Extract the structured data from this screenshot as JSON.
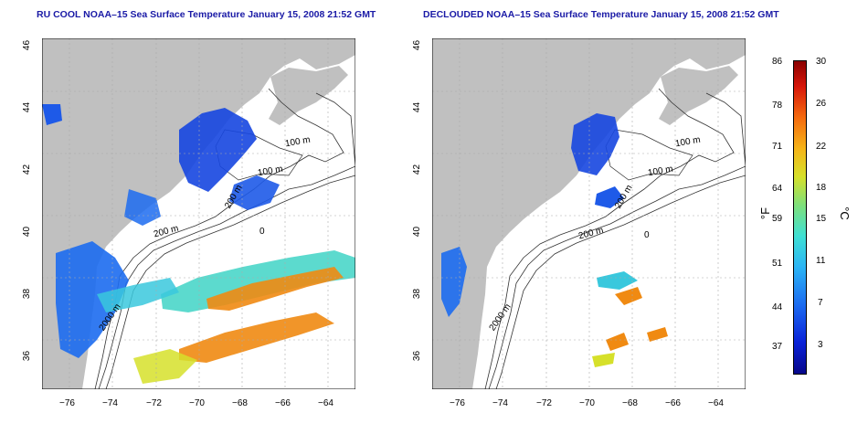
{
  "titles": {
    "left": "RU COOL NOAA–15 Sea Surface Temperature January 15, 2008 21:52 GMT",
    "right": "DECLOUDED NOAA–15 Sea Surface Temperature January 15, 2008 21:52 GMT"
  },
  "axes": {
    "x_ticks": [
      "−76",
      "−74",
      "−72",
      "−70",
      "−68",
      "−66",
      "−64"
    ],
    "y_ticks": [
      "36",
      "38",
      "40",
      "42",
      "44",
      "46"
    ]
  },
  "isobath_labels": {
    "left": [
      "100 m",
      "100 m",
      "200 m",
      "200 m",
      "2000 m",
      "0"
    ],
    "right": [
      "100 m",
      "100 m",
      "200 m",
      "200 m",
      "2000 m",
      "0"
    ]
  },
  "colorbar": {
    "fahrenheit_label": "°F",
    "celsius_label": "°C",
    "fahrenheit_ticks": [
      "86",
      "78",
      "71",
      "64",
      "59",
      "51",
      "44",
      "37"
    ],
    "celsius_ticks": [
      "30",
      "26",
      "22",
      "18",
      "15",
      "11",
      "7",
      "3"
    ]
  },
  "colors": {
    "land": "#c0c0c0",
    "title": "#1a1aa6",
    "cold": "#1646e0",
    "warm": "#f08a12"
  }
}
